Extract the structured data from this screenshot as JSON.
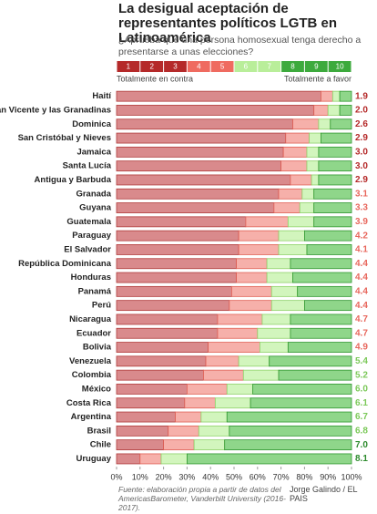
{
  "chart_data": {
    "type": "stacked-bar-horizontal",
    "title": "La desigual aceptación de representantes políticos LGTB en Latinoamérica",
    "subtitle": "¿Aprueba que una persona homosexual tenga derecho a presentarse a unas elecciones?",
    "scale": {
      "labels": [
        1,
        2,
        3,
        4,
        5,
        6,
        7,
        8,
        9,
        10
      ],
      "colors": [
        "#b52a2a",
        "#b52a2a",
        "#b52a2a",
        "#ef6b60",
        "#ef6b60",
        "#b9ee9a",
        "#b9ee9a",
        "#3daa3d",
        "#3daa3d",
        "#3daa3d"
      ],
      "low_label": "Totalmente en contra",
      "high_label": "Totalmente a favor"
    },
    "categories": [
      "Haití",
      "San Vicente y las Granadinas",
      "Dominica",
      "San Cristóbal y Nieves",
      "Jamaica",
      "Santa Lucía",
      "Antigua y Barbuda",
      "Granada",
      "Guyana",
      "Guatemala",
      "Paraguay",
      "El Salvador",
      "República Dominicana",
      "Honduras",
      "Panamá",
      "Perú",
      "Nicaragua",
      "Ecuador",
      "Bolivia",
      "Venezuela",
      "Colombia",
      "México",
      "Costa Rica",
      "Argentina",
      "Brasil",
      "Chile",
      "Uruguay"
    ],
    "series": [
      {
        "color": "#d98a8c",
        "stroke": "#b03a3a",
        "values": [
          87,
          84,
          75,
          72,
          71,
          70,
          74,
          69,
          67,
          55,
          52,
          52,
          51,
          51,
          49,
          48,
          43,
          43,
          39,
          38,
          37,
          30,
          29,
          25,
          22,
          20,
          10
        ]
      },
      {
        "color": "#f6b0aa",
        "stroke": "#e06055",
        "values": [
          5,
          6,
          11,
          10,
          10,
          11,
          9,
          10,
          11,
          18,
          17,
          17,
          13,
          13,
          17,
          18,
          19,
          17,
          22,
          14,
          17,
          17,
          13,
          11,
          13,
          13,
          9
        ]
      },
      {
        "color": "#d2f5bd",
        "stroke": "#8fd26a",
        "values": [
          3,
          5,
          5,
          5,
          5,
          5,
          3,
          5,
          6,
          11,
          11,
          12,
          10,
          11,
          11,
          14,
          12,
          14,
          12,
          13,
          15,
          11,
          15,
          11,
          13,
          13,
          11
        ]
      },
      {
        "color": "#8fd68a",
        "stroke": "#2e962e",
        "values": [
          5,
          5,
          9,
          13,
          14,
          14,
          14,
          16,
          16,
          16,
          20,
          19,
          26,
          25,
          23,
          20,
          26,
          26,
          27,
          35,
          31,
          42,
          43,
          53,
          52,
          54,
          70
        ]
      }
    ],
    "scores": {
      "values": [
        1.9,
        2.0,
        2.6,
        2.9,
        3.0,
        3.0,
        2.9,
        3.1,
        3.3,
        3.9,
        4.2,
        4.1,
        4.4,
        4.4,
        4.4,
        4.4,
        4.7,
        4.7,
        4.9,
        5.4,
        5.2,
        6.0,
        6.1,
        6.7,
        6.8,
        7.0,
        8.1
      ],
      "value_labels": [
        "1.9",
        "2.0",
        "2.6",
        "2.9",
        "3.0",
        "3.0",
        "2.9",
        "3.1",
        "3.3",
        "3.9",
        "4.2",
        "4.1",
        "4.4",
        "4.4",
        "4.4",
        "4.4",
        "4.7",
        "4.7",
        "4.9",
        "5.4",
        "5.2",
        "6.0",
        "6.1",
        "6.7",
        "6.8",
        "7.0",
        "8.1"
      ],
      "colors": [
        "#b52a2a",
        "#b52a2a",
        "#b52a2a",
        "#b52a2a",
        "#b52a2a",
        "#b52a2a",
        "#b52a2a",
        "#e8685e",
        "#e8685e",
        "#e8685e",
        "#e8685e",
        "#e8685e",
        "#e8685e",
        "#e8685e",
        "#e8685e",
        "#e8685e",
        "#e8685e",
        "#e8685e",
        "#e8685e",
        "#7cc95a",
        "#7cc95a",
        "#7cc95a",
        "#7cc95a",
        "#7cc95a",
        "#7cc95a",
        "#2e8b2e",
        "#2e8b2e"
      ]
    },
    "xlim": [
      0,
      100
    ],
    "xticks": [
      {
        "value": 0,
        "label": "0%"
      },
      {
        "value": 10,
        "label": "10%"
      },
      {
        "value": 20,
        "label": "20%"
      },
      {
        "value": 30,
        "label": "30%"
      },
      {
        "value": 40,
        "label": "40%"
      },
      {
        "value": 50,
        "label": "50%"
      },
      {
        "value": 60,
        "label": "60%"
      },
      {
        "value": 70,
        "label": "70%"
      },
      {
        "value": 80,
        "label": "80%"
      },
      {
        "value": 90,
        "label": "90%"
      },
      {
        "value": 100,
        "label": "100%"
      }
    ],
    "source": "Fuente: elaboración propia a partir de datos del AmericasBarometer, Vanderbilt University (2016-2017).",
    "credit": "Jorge Galindo / EL PAIS"
  }
}
